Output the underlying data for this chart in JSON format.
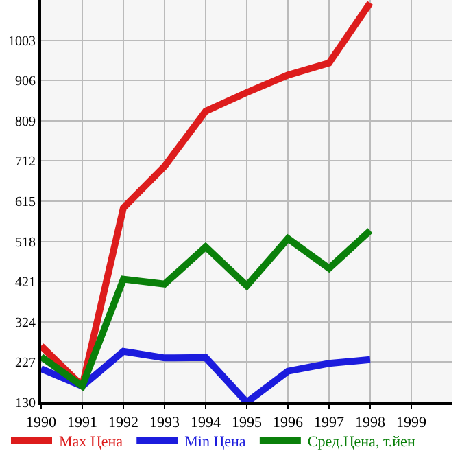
{
  "chart_data": {
    "type": "line",
    "x": [
      1990,
      1991,
      1992,
      1993,
      1994,
      1995,
      1996,
      1997,
      1998
    ],
    "series": [
      {
        "name": "Max Цена",
        "color": "#dd1c1c",
        "values": [
          266,
          169,
          599,
          699,
          832,
          877,
          919,
          948,
          1093
        ]
      },
      {
        "name": "Min Цена",
        "color": "#1c1cdd",
        "values": [
          211,
          169,
          253,
          237,
          238,
          130,
          205,
          224,
          233
        ]
      },
      {
        "name": "Сред.Цена, т.йен",
        "color": "#0a800a",
        "values": [
          240,
          169,
          427,
          415,
          505,
          411,
          525,
          453,
          544
        ]
      }
    ],
    "xlim": [
      1990,
      2000
    ],
    "xticks": [
      1990,
      1991,
      1992,
      1993,
      1994,
      1995,
      1996,
      1997,
      1998,
      1999
    ],
    "ylim": [
      130,
      1100
    ],
    "yticks": [
      130,
      227,
      324,
      421,
      518,
      615,
      712,
      809,
      906,
      1003
    ],
    "grid": true,
    "legend": "bottom",
    "marker": "none",
    "line_style": "solid"
  }
}
